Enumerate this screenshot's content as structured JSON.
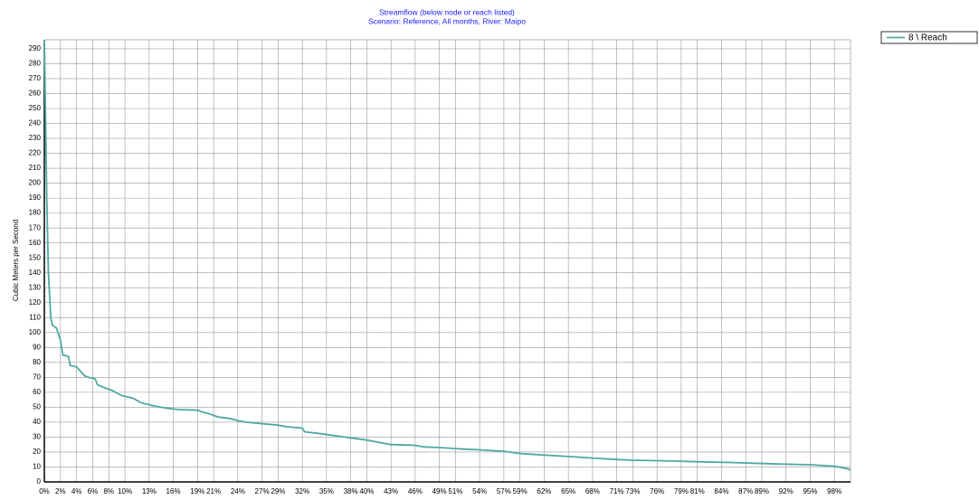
{
  "chart_data": {
    "type": "line",
    "title": "Streamflow  (below  node or reach listed)",
    "subtitle": "Scenario: Reference,  All months,  River: Maipo",
    "y_label": "Cubic Meters per Second",
    "x": [
      0,
      0.3,
      0.5,
      0.8,
      1,
      1.5,
      2,
      2.3,
      3,
      3.2,
      4,
      4.5,
      5,
      5.5,
      6.3,
      6.6,
      7.5,
      8.5,
      9.5,
      11,
      12,
      13.5,
      15,
      16.5,
      19,
      19.5,
      20.5,
      21.5,
      23,
      24,
      25,
      27,
      29,
      30,
      32,
      32.3,
      34,
      36,
      38,
      40,
      41.5,
      43,
      46,
      47,
      49,
      52,
      54,
      57,
      59,
      62,
      65,
      68,
      71,
      73,
      78,
      81,
      85,
      88,
      91,
      95,
      98,
      99.5,
      100
    ],
    "series": [
      {
        "name": "8 \\ Reach",
        "color": "#4fa8a2",
        "values": [
          296,
          190,
          140,
          110,
          105,
          103,
          95,
          85,
          84,
          78,
          77,
          74,
          71,
          70,
          69,
          65,
          63,
          61,
          58,
          56,
          53,
          51,
          49.5,
          48.5,
          48,
          47,
          45.5,
          43.5,
          42.5,
          41,
          40,
          39,
          38,
          37,
          36,
          33.5,
          32.5,
          31,
          29.5,
          28,
          26.5,
          25,
          24.5,
          23.5,
          23,
          22,
          21.5,
          20.5,
          19,
          18,
          17,
          16,
          15,
          14.5,
          14,
          13.5,
          13,
          12.5,
          12,
          11.5,
          10.5,
          9,
          8
        ]
      }
    ],
    "xlim": [
      0,
      100
    ],
    "xticks": [
      {
        "value": 0,
        "label": "0%"
      },
      {
        "value": 2,
        "label": "2%"
      },
      {
        "value": 4,
        "label": "4%"
      },
      {
        "value": 6,
        "label": "6%"
      },
      {
        "value": 8,
        "label": "8%"
      },
      {
        "value": 10,
        "label": "10%"
      },
      {
        "value": 13,
        "label": "13%"
      },
      {
        "value": 16,
        "label": "16%"
      },
      {
        "value": 19,
        "label": "19%"
      },
      {
        "value": 21,
        "label": "21%"
      },
      {
        "value": 24,
        "label": "24%"
      },
      {
        "value": 27,
        "label": "27%"
      },
      {
        "value": 29,
        "label": "29%"
      },
      {
        "value": 32,
        "label": "32%"
      },
      {
        "value": 35,
        "label": "35%"
      },
      {
        "value": 38,
        "label": "38%"
      },
      {
        "value": 40,
        "label": "40%"
      },
      {
        "value": 43,
        "label": "43%"
      },
      {
        "value": 46,
        "label": "46%"
      },
      {
        "value": 49,
        "label": "49%"
      },
      {
        "value": 51,
        "label": "51%"
      },
      {
        "value": 54,
        "label": "54%"
      },
      {
        "value": 57,
        "label": "57%"
      },
      {
        "value": 59,
        "label": "59%"
      },
      {
        "value": 62,
        "label": "62%"
      },
      {
        "value": 65,
        "label": "65%"
      },
      {
        "value": 68,
        "label": "68%"
      },
      {
        "value": 71,
        "label": "71%"
      },
      {
        "value": 73,
        "label": "73%"
      },
      {
        "value": 76,
        "label": "76%"
      },
      {
        "value": 79,
        "label": "79%"
      },
      {
        "value": 81,
        "label": "81%"
      },
      {
        "value": 84,
        "label": "84%"
      },
      {
        "value": 87,
        "label": "87%"
      },
      {
        "value": 89,
        "label": "89%"
      },
      {
        "value": 92,
        "label": "92%"
      },
      {
        "value": 95,
        "label": "95%"
      },
      {
        "value": 98,
        "label": "98%"
      }
    ],
    "ylim": [
      0,
      296
    ],
    "yticks": [
      0,
      10,
      20,
      30,
      40,
      50,
      60,
      70,
      80,
      90,
      100,
      110,
      120,
      130,
      140,
      150,
      160,
      170,
      180,
      190,
      200,
      210,
      220,
      230,
      240,
      250,
      260,
      270,
      280,
      290
    ],
    "grid": true
  }
}
